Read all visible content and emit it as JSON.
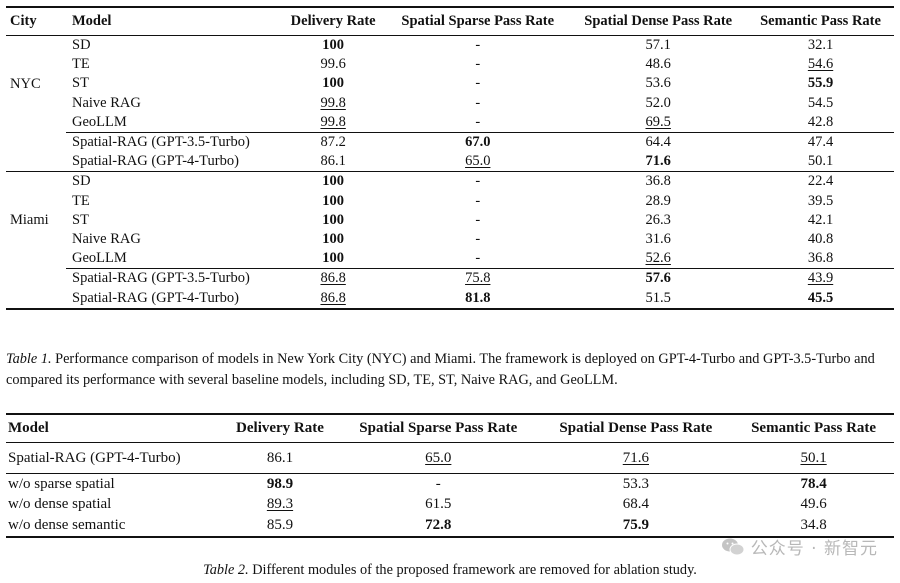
{
  "table1": {
    "headers": [
      "City",
      "Model",
      "Delivery Rate",
      "Spatial Sparse Pass Rate",
      "Spatial Dense Pass Rate",
      "Semantic Pass Rate"
    ],
    "groups": [
      {
        "city": "NYC",
        "rows": [
          {
            "model": "SD",
            "delivery": "100",
            "sparse": "-",
            "dense": "57.1",
            "semantic": "32.1",
            "fmt": [
              "b",
              "",
              "",
              ""
            ]
          },
          {
            "model": "TE",
            "delivery": "99.6",
            "sparse": "-",
            "dense": "48.6",
            "semantic": "54.6",
            "fmt": [
              "",
              "",
              "",
              "u"
            ]
          },
          {
            "model": "ST",
            "delivery": "100",
            "sparse": "-",
            "dense": "53.6",
            "semantic": "55.9",
            "fmt": [
              "b",
              "",
              "",
              "b"
            ]
          },
          {
            "model": "Naive RAG",
            "delivery": "99.8",
            "sparse": "-",
            "dense": "52.0",
            "semantic": "54.5",
            "fmt": [
              "u",
              "",
              "",
              ""
            ]
          },
          {
            "model": "GeoLLM",
            "delivery": "99.8",
            "sparse": "-",
            "dense": "69.5",
            "semantic": "42.8",
            "fmt": [
              "u",
              "",
              "u",
              ""
            ]
          }
        ],
        "ours": [
          {
            "model": "Spatial-RAG (GPT-3.5-Turbo)",
            "delivery": "87.2",
            "sparse": "67.0",
            "dense": "64.4",
            "semantic": "47.4",
            "fmt": [
              "",
              "b",
              "",
              ""
            ]
          },
          {
            "model": "Spatial-RAG (GPT-4-Turbo)",
            "delivery": "86.1",
            "sparse": "65.0",
            "dense": "71.6",
            "semantic": "50.1",
            "fmt": [
              "",
              "u",
              "b",
              ""
            ]
          }
        ]
      },
      {
        "city": "Miami",
        "rows": [
          {
            "model": "SD",
            "delivery": "100",
            "sparse": "-",
            "dense": "36.8",
            "semantic": "22.4",
            "fmt": [
              "b",
              "",
              "",
              ""
            ]
          },
          {
            "model": "TE",
            "delivery": "100",
            "sparse": "-",
            "dense": "28.9",
            "semantic": "39.5",
            "fmt": [
              "b",
              "",
              "",
              ""
            ]
          },
          {
            "model": "ST",
            "delivery": "100",
            "sparse": "-",
            "dense": "26.3",
            "semantic": "42.1",
            "fmt": [
              "b",
              "",
              "",
              ""
            ]
          },
          {
            "model": "Naive RAG",
            "delivery": "100",
            "sparse": "-",
            "dense": "31.6",
            "semantic": "40.8",
            "fmt": [
              "b",
              "",
              "",
              ""
            ]
          },
          {
            "model": "GeoLLM",
            "delivery": "100",
            "sparse": "-",
            "dense": "52.6",
            "semantic": "36.8",
            "fmt": [
              "b",
              "",
              "u",
              ""
            ]
          }
        ],
        "ours": [
          {
            "model": "Spatial-RAG (GPT-3.5-Turbo)",
            "delivery": "86.8",
            "sparse": "75.8",
            "dense": "57.6",
            "semantic": "43.9",
            "fmt": [
              "u",
              "u",
              "b",
              "u"
            ]
          },
          {
            "model": "Spatial-RAG (GPT-4-Turbo)",
            "delivery": "86.8",
            "sparse": "81.8",
            "dense": "51.5",
            "semantic": "45.5",
            "fmt": [
              "u",
              "b",
              "",
              "b"
            ]
          }
        ]
      }
    ],
    "caption_label": "Table 1.",
    "caption_text": " Performance comparison of models in New York City (NYC) and Miami. The framework is deployed on GPT-4-Turbo and GPT-3.5-Turbo and compared its performance with several baseline models, including SD, TE, ST, Naive RAG, and GeoLLM."
  },
  "table2": {
    "headers": [
      "Model",
      "Delivery Rate",
      "Spatial Sparse Pass Rate",
      "Spatial Dense Pass Rate",
      "Semantic Pass Rate"
    ],
    "rows": [
      {
        "model": "Spatial-RAG (GPT-4-Turbo)",
        "delivery": "86.1",
        "sparse": "65.0",
        "dense": "71.6",
        "semantic": "50.1",
        "fmt": [
          "",
          "u",
          "u",
          "u"
        ]
      },
      {
        "model": "w/o sparse spatial",
        "delivery": "98.9",
        "sparse": "-",
        "dense": "53.3",
        "semantic": "78.4",
        "fmt": [
          "b",
          "",
          "",
          "b"
        ]
      },
      {
        "model": "w/o dense spatial",
        "delivery": "89.3",
        "sparse": "61.5",
        "dense": "68.4",
        "semantic": "49.6",
        "fmt": [
          "u",
          "",
          "",
          ""
        ]
      },
      {
        "model": "w/o dense semantic",
        "delivery": "85.9",
        "sparse": "72.8",
        "dense": "75.9",
        "semantic": "34.8",
        "fmt": [
          "",
          "b",
          "b",
          ""
        ]
      }
    ],
    "caption_label": "Table 2.",
    "caption_text": " Different modules of the proposed framework are removed for ablation study."
  },
  "watermark": {
    "text": "公众号 · 新智元",
    "icon": "wechat-icon"
  }
}
